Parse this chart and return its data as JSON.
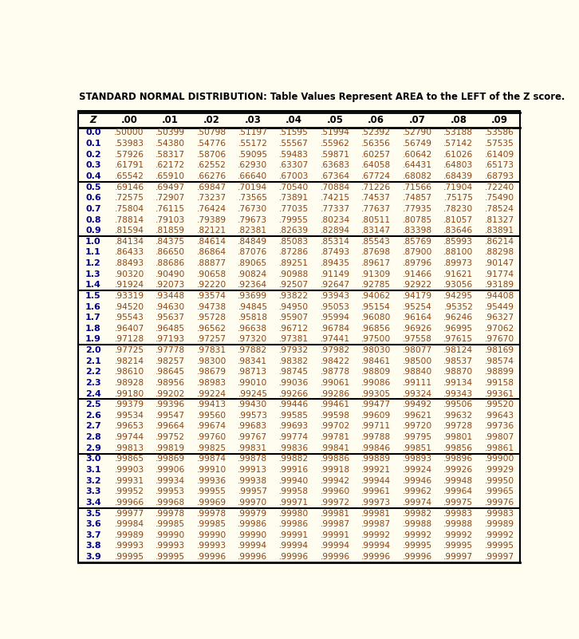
{
  "title": "STANDARD NORMAL DISTRIBUTION: Table Values Represent AREA to the LEFT of the Z score.",
  "col_headers": [
    "Z",
    ".00",
    ".01",
    ".02",
    ".03",
    ".04",
    ".05",
    ".06",
    ".07",
    ".08",
    ".09"
  ],
  "text_color": "#8B4513",
  "header_color": "#00008B",
  "bg_color": "#FFFDF0",
  "rows": [
    [
      "0.0",
      ".50000",
      ".50399",
      ".50798",
      ".51197",
      ".51595",
      ".51994",
      ".52392",
      ".52790",
      ".53188",
      ".53586"
    ],
    [
      "0.1",
      ".53983",
      ".54380",
      ".54776",
      ".55172",
      ".55567",
      ".55962",
      ".56356",
      ".56749",
      ".57142",
      ".57535"
    ],
    [
      "0.2",
      ".57926",
      ".58317",
      ".58706",
      ".59095",
      ".59483",
      ".59871",
      ".60257",
      ".60642",
      ".61026",
      ".61409"
    ],
    [
      "0.3",
      ".61791",
      ".62172",
      ".62552",
      ".62930",
      ".63307",
      ".63683",
      ".64058",
      ".64431",
      ".64803",
      ".65173"
    ],
    [
      "0.4",
      ".65542",
      ".65910",
      ".66276",
      ".66640",
      ".67003",
      ".67364",
      ".67724",
      ".68082",
      ".68439",
      ".68793"
    ],
    [
      "0.5",
      ".69146",
      ".69497",
      ".69847",
      ".70194",
      ".70540",
      ".70884",
      ".71226",
      ".71566",
      ".71904",
      ".72240"
    ],
    [
      "0.6",
      ".72575",
      ".72907",
      ".73237",
      ".73565",
      ".73891",
      ".74215",
      ".74537",
      ".74857",
      ".75175",
      ".75490"
    ],
    [
      "0.7",
      ".75804",
      ".76115",
      ".76424",
      ".76730",
      ".77035",
      ".77337",
      ".77637",
      ".77935",
      ".78230",
      ".78524"
    ],
    [
      "0.8",
      ".78814",
      ".79103",
      ".79389",
      ".79673",
      ".79955",
      ".80234",
      ".80511",
      ".80785",
      ".81057",
      ".81327"
    ],
    [
      "0.9",
      ".81594",
      ".81859",
      ".82121",
      ".82381",
      ".82639",
      ".82894",
      ".83147",
      ".83398",
      ".83646",
      ".83891"
    ],
    [
      "1.0",
      ".84134",
      ".84375",
      ".84614",
      ".84849",
      ".85083",
      ".85314",
      ".85543",
      ".85769",
      ".85993",
      ".86214"
    ],
    [
      "1.1",
      ".86433",
      ".86650",
      ".86864",
      ".87076",
      ".87286",
      ".87493",
      ".87698",
      ".87900",
      ".88100",
      ".88298"
    ],
    [
      "1.2",
      ".88493",
      ".88686",
      ".88877",
      ".89065",
      ".89251",
      ".89435",
      ".89617",
      ".89796",
      ".89973",
      ".90147"
    ],
    [
      "1.3",
      ".90320",
      ".90490",
      ".90658",
      ".90824",
      ".90988",
      ".91149",
      ".91309",
      ".91466",
      ".91621",
      ".91774"
    ],
    [
      "1.4",
      ".91924",
      ".92073",
      ".92220",
      ".92364",
      ".92507",
      ".92647",
      ".92785",
      ".92922",
      ".93056",
      ".93189"
    ],
    [
      "1.5",
      ".93319",
      ".93448",
      ".93574",
      ".93699",
      ".93822",
      ".93943",
      ".94062",
      ".94179",
      ".94295",
      ".94408"
    ],
    [
      "1.6",
      ".94520",
      ".94630",
      ".94738",
      ".94845",
      ".94950",
      ".95053",
      ".95154",
      ".95254",
      ".95352",
      ".95449"
    ],
    [
      "1.7",
      ".95543",
      ".95637",
      ".95728",
      ".95818",
      ".95907",
      ".95994",
      ".96080",
      ".96164",
      ".96246",
      ".96327"
    ],
    [
      "1.8",
      ".96407",
      ".96485",
      ".96562",
      ".96638",
      ".96712",
      ".96784",
      ".96856",
      ".96926",
      ".96995",
      ".97062"
    ],
    [
      "1.9",
      ".97128",
      ".97193",
      ".97257",
      ".97320",
      ".97381",
      ".97441",
      ".97500",
      ".97558",
      ".97615",
      ".97670"
    ],
    [
      "2.0",
      ".97725",
      ".97778",
      ".97831",
      ".97882",
      ".97932",
      ".97982",
      ".98030",
      ".98077",
      ".98124",
      ".98169"
    ],
    [
      "2.1",
      ".98214",
      ".98257",
      ".98300",
      ".98341",
      ".98382",
      ".98422",
      ".98461",
      ".98500",
      ".98537",
      ".98574"
    ],
    [
      "2.2",
      ".98610",
      ".98645",
      ".98679",
      ".98713",
      ".98745",
      ".98778",
      ".98809",
      ".98840",
      ".98870",
      ".98899"
    ],
    [
      "2.3",
      ".98928",
      ".98956",
      ".98983",
      ".99010",
      ".99036",
      ".99061",
      ".99086",
      ".99111",
      ".99134",
      ".99158"
    ],
    [
      "2.4",
      ".99180",
      ".99202",
      ".99224",
      ".99245",
      ".99266",
      ".99286",
      ".99305",
      ".99324",
      ".99343",
      ".99361"
    ],
    [
      "2.5",
      ".99379",
      ".99396",
      ".99413",
      ".99430",
      ".99446",
      ".99461",
      ".99477",
      ".99492",
      ".99506",
      ".99520"
    ],
    [
      "2.6",
      ".99534",
      ".99547",
      ".99560",
      ".99573",
      ".99585",
      ".99598",
      ".99609",
      ".99621",
      ".99632",
      ".99643"
    ],
    [
      "2.7",
      ".99653",
      ".99664",
      ".99674",
      ".99683",
      ".99693",
      ".99702",
      ".99711",
      ".99720",
      ".99728",
      ".99736"
    ],
    [
      "2.8",
      ".99744",
      ".99752",
      ".99760",
      ".99767",
      ".99774",
      ".99781",
      ".99788",
      ".99795",
      ".99801",
      ".99807"
    ],
    [
      "2.9",
      ".99813",
      ".99819",
      ".99825",
      ".99831",
      ".99836",
      ".99841",
      ".99846",
      ".99851",
      ".99856",
      ".99861"
    ],
    [
      "3.0",
      ".99865",
      ".99869",
      ".99874",
      ".99878",
      ".99882",
      ".99886",
      ".99889",
      ".99893",
      ".99896",
      ".99900"
    ],
    [
      "3.1",
      ".99903",
      ".99906",
      ".99910",
      ".99913",
      ".99916",
      ".99918",
      ".99921",
      ".99924",
      ".99926",
      ".99929"
    ],
    [
      "3.2",
      ".99931",
      ".99934",
      ".99936",
      ".99938",
      ".99940",
      ".99942",
      ".99944",
      ".99946",
      ".99948",
      ".99950"
    ],
    [
      "3.3",
      ".99952",
      ".99953",
      ".99955",
      ".99957",
      ".99958",
      ".99960",
      ".99961",
      ".99962",
      ".99964",
      ".99965"
    ],
    [
      "3.4",
      ".99966",
      ".99968",
      ".99969",
      ".99970",
      ".99971",
      ".99972",
      ".99973",
      ".99974",
      ".99975",
      ".99976"
    ],
    [
      "3.5",
      ".99977",
      ".99978",
      ".99978",
      ".99979",
      ".99980",
      ".99981",
      ".99981",
      ".99982",
      ".99983",
      ".99983"
    ],
    [
      "3.6",
      ".99984",
      ".99985",
      ".99985",
      ".99986",
      ".99986",
      ".99987",
      ".99987",
      ".99988",
      ".99988",
      ".99989"
    ],
    [
      "3.7",
      ".99989",
      ".99990",
      ".99990",
      ".99990",
      ".99991",
      ".99991",
      ".99992",
      ".99992",
      ".99992",
      ".99992"
    ],
    [
      "3.8",
      ".99993",
      ".99993",
      ".99993",
      ".99994",
      ".99994",
      ".99994",
      ".99994",
      ".99995",
      ".99995",
      ".99995"
    ],
    [
      "3.9",
      ".99995",
      ".99995",
      ".99996",
      ".99996",
      ".99996",
      ".99996",
      ".99996",
      ".99996",
      ".99997",
      ".99997"
    ]
  ],
  "group_separators": [
    4,
    9,
    14,
    19,
    24,
    29,
    34
  ],
  "figsize": [
    7.26,
    8.01
  ],
  "dpi": 100
}
